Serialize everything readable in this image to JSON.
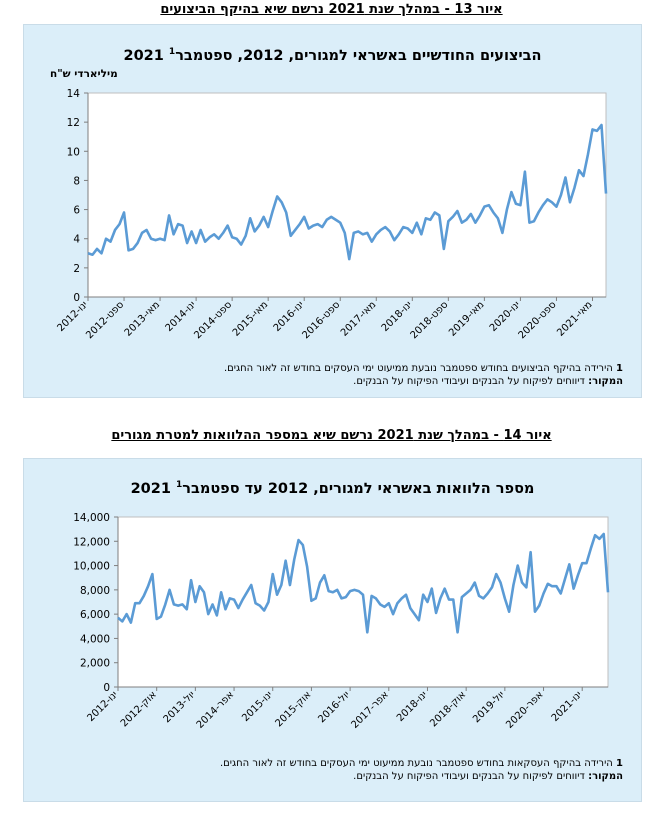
{
  "figures": [
    {
      "figure_title": "איור 13 - במהלך שנת 2021 נרשם שיא בהיקף הביצועים",
      "chart_title": "הביצועים החודשיים באשראי למגורים, 2012, ספטמבר",
      "chart_title_sup": "1",
      "chart_title_year": "2021",
      "unit_label": "מיליארדי ש\"ח",
      "note_line1": "הירידה בהיקף הביצועים בחודש ספטמבר נובעת ממיעוט ימי העסקים בחודש זה לאור החגים.",
      "note_num": "1",
      "source_label": "המקור:",
      "source_text": "דיווחים לפיקוח על הבנקים ועיבודי הפיקוח על הבנקים."
    },
    {
      "figure_title": "איור 14 - במהלך שנת 2021 נרשם שיא במספר ההלוואות למטרת מגורים",
      "chart_title": "מספר הלוואות באשראי למגורים, 2012 עד ספטמבר",
      "chart_title_sup": "1",
      "chart_title_year": "2021",
      "unit_label": "",
      "note_line1": "הירידה בהיקף העסקאות בחודש ספטמבר נובעת ממיעוט ימי העסקים בחודש זה לאור החגים.",
      "note_num": "1",
      "source_label": "המקור:",
      "source_text": "דיווחים לפיקוח על הבנקים ועיבודי הפיקוח על הבנקים."
    }
  ],
  "chart_data": [
    {
      "type": "line",
      "x_start": "2012-01",
      "x_end": "2021-09",
      "frequency": "monthly",
      "ylim": [
        0,
        14
      ],
      "y_ticks": [
        0,
        2,
        4,
        6,
        8,
        10,
        12,
        14
      ],
      "y_tick_labels": [
        "0",
        "2",
        "4",
        "6",
        "8",
        "10",
        "12",
        "14"
      ],
      "x_tick_labels": [
        "ינו-2012",
        "ספט-2012",
        "מאי-2013",
        "ינו-2014",
        "ספט-2014",
        "מאי-2015",
        "ינו-2016",
        "ספט-2016",
        "מאי-2017",
        "ינו-2018",
        "ספט-2018",
        "מאי-2019",
        "ינו-2020",
        "ספט-2020",
        "מאי-2021"
      ],
      "line_color": "#5b9bd5",
      "grid": false,
      "series": [
        {
          "values": [
            3.0,
            2.9,
            3.3,
            3.0,
            4.0,
            3.8,
            4.6,
            5.0,
            5.8,
            3.2,
            3.3,
            3.7,
            4.4,
            4.6,
            4.0,
            3.9,
            4.0,
            3.9,
            5.6,
            4.3,
            5.0,
            4.9,
            3.7,
            4.5,
            3.7,
            4.6,
            3.8,
            4.1,
            4.3,
            4.0,
            4.4,
            4.9,
            4.1,
            4.0,
            3.6,
            4.2,
            5.4,
            4.5,
            4.9,
            5.5,
            4.8,
            5.9,
            6.9,
            6.5,
            5.8,
            4.2,
            4.6,
            5.0,
            5.5,
            4.7,
            4.9,
            5.0,
            4.8,
            5.3,
            5.5,
            5.3,
            5.1,
            4.4,
            2.6,
            4.4,
            4.5,
            4.3,
            4.4,
            3.8,
            4.3,
            4.6,
            4.8,
            4.5,
            3.9,
            4.3,
            4.8,
            4.7,
            4.4,
            5.1,
            4.3,
            5.4,
            5.3,
            5.8,
            5.6,
            3.3,
            5.2,
            5.5,
            5.9,
            5.1,
            5.3,
            5.7,
            5.1,
            5.6,
            6.2,
            6.3,
            5.8,
            5.4,
            4.4,
            6.0,
            7.2,
            6.4,
            6.3,
            8.6,
            5.1,
            5.2,
            5.8,
            6.3,
            6.7,
            6.5,
            6.2,
            7.0,
            8.2,
            6.5,
            7.5,
            8.7,
            8.3,
            9.8,
            11.5,
            11.4,
            11.8,
            7.1
          ]
        }
      ]
    },
    {
      "type": "line",
      "x_start": "2012-01",
      "x_end": "2021-09",
      "frequency": "monthly",
      "ylim": [
        0,
        14000
      ],
      "y_ticks": [
        0,
        2000,
        4000,
        6000,
        8000,
        10000,
        12000,
        14000
      ],
      "y_tick_labels": [
        "0",
        "2,000",
        "4,000",
        "6,000",
        "8,000",
        "10,000",
        "12,000",
        "14,000"
      ],
      "x_tick_labels": [
        "ינו-2012",
        "אוק-2012",
        "יול-2013",
        "אפר-2014",
        "ינו-2015",
        "אוק-2015",
        "יול-2016",
        "אפר-2017",
        "ינו-2018",
        "אוק-2018",
        "יול-2019",
        "אפר-2020",
        "ינו-2021"
      ],
      "line_color": "#5b9bd5",
      "grid": false,
      "series": [
        {
          "values": [
            5700,
            5400,
            6000,
            5300,
            6900,
            6900,
            7500,
            8300,
            9300,
            5600,
            5800,
            6800,
            8000,
            6800,
            6700,
            6800,
            6400,
            8800,
            7000,
            8300,
            7800,
            6000,
            6800,
            5900,
            7800,
            6400,
            7300,
            7200,
            6500,
            7200,
            7800,
            8400,
            6900,
            6700,
            6300,
            7000,
            9300,
            7600,
            8400,
            10400,
            8400,
            10500,
            12100,
            11700,
            9900,
            7100,
            7300,
            8600,
            9200,
            7900,
            7800,
            8000,
            7300,
            7400,
            7900,
            8000,
            7900,
            7600,
            4500,
            7500,
            7300,
            6800,
            6600,
            6900,
            6000,
            6900,
            7300,
            7600,
            6500,
            6000,
            5500,
            7600,
            7000,
            8100,
            6100,
            7300,
            8100,
            7200,
            7200,
            4500,
            7400,
            7700,
            8000,
            8600,
            7500,
            7300,
            7700,
            8200,
            9300,
            8600,
            7300,
            6200,
            8400,
            10000,
            8600,
            8200,
            11100,
            6200,
            6700,
            7700,
            8500,
            8300,
            8300,
            7700,
            8900,
            10100,
            8100,
            9200,
            10200,
            10200,
            11400,
            12500,
            12200,
            12600,
            7800
          ]
        }
      ]
    }
  ]
}
